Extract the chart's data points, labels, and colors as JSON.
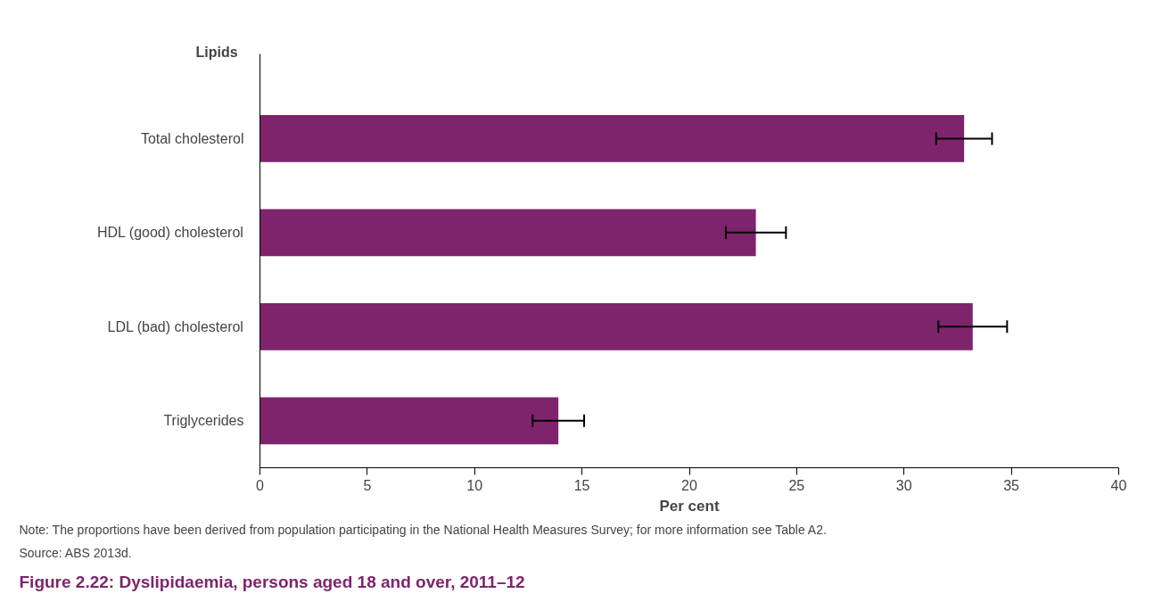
{
  "chart_data": {
    "type": "bar",
    "orientation": "horizontal",
    "title": "Figure 2.22: Dyslipidaemia, persons aged 18 and over, 2011–12",
    "ylabel": "Lipids",
    "xlabel": "Per cent",
    "categories": [
      "Total cholesterol",
      "HDL (good) cholesterol",
      "LDL (bad) cholesterol",
      "Triglycerides"
    ],
    "values": [
      32.8,
      23.1,
      33.2,
      13.9
    ],
    "errors": [
      [
        31.5,
        34.1
      ],
      [
        21.7,
        24.5
      ],
      [
        31.6,
        34.8
      ],
      [
        12.7,
        15.1
      ]
    ],
    "color": "#7e246c",
    "xlim": [
      0,
      40
    ],
    "xticks": [
      0,
      5,
      10,
      15,
      20,
      25,
      30,
      35,
      40
    ],
    "grid": false,
    "annotations": [
      "Note: The proportions have been derived from population participating in the National Health Measures Survey; for more information see Table A2.",
      "Source: ABS 2013d."
    ]
  }
}
